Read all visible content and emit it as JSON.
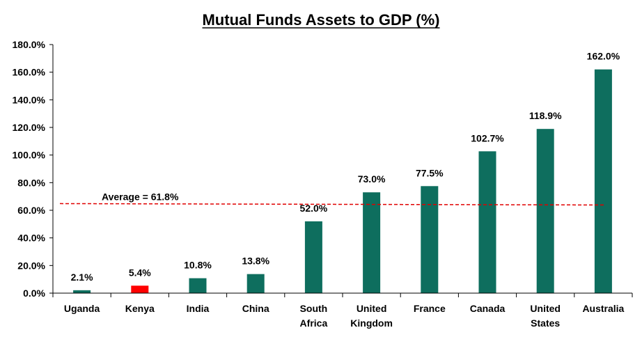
{
  "chart_data": {
    "type": "bar",
    "title": "Mutual Funds Assets to GDP (%)",
    "xlabel": "",
    "ylabel": "",
    "ylim": [
      0,
      180
    ],
    "yticks": [
      0,
      20,
      40,
      60,
      80,
      100,
      120,
      140,
      160,
      180
    ],
    "ytick_labels": [
      "0.0%",
      "20.0%",
      "40.0%",
      "60.0%",
      "80.0%",
      "100.0%",
      "120.0%",
      "140.0%",
      "160.0%",
      "180.0%"
    ],
    "categories": [
      [
        "Uganda"
      ],
      [
        "Kenya"
      ],
      [
        "India"
      ],
      [
        "China"
      ],
      [
        "South",
        "Africa"
      ],
      [
        "United",
        "Kingdom"
      ],
      [
        "France"
      ],
      [
        "Canada"
      ],
      [
        "United",
        "States"
      ],
      [
        "Australia"
      ]
    ],
    "values": [
      2.1,
      5.4,
      10.8,
      13.8,
      52.0,
      73.0,
      77.5,
      102.7,
      118.9,
      162.0
    ],
    "value_labels": [
      "2.1%",
      "5.4%",
      "10.8%",
      "13.8%",
      "52.0%",
      "73.0%",
      "77.5%",
      "102.7%",
      "118.9%",
      "162.0%"
    ],
    "bar_colors": [
      "#0e6e5e",
      "#ff0000",
      "#0e6e5e",
      "#0e6e5e",
      "#0e6e5e",
      "#0e6e5e",
      "#0e6e5e",
      "#0e6e5e",
      "#0e6e5e",
      "#0e6e5e"
    ],
    "average": {
      "label": "Average = 61.8%",
      "value": 61.8,
      "color": "#e00000"
    },
    "grid": false,
    "legend": "none"
  }
}
